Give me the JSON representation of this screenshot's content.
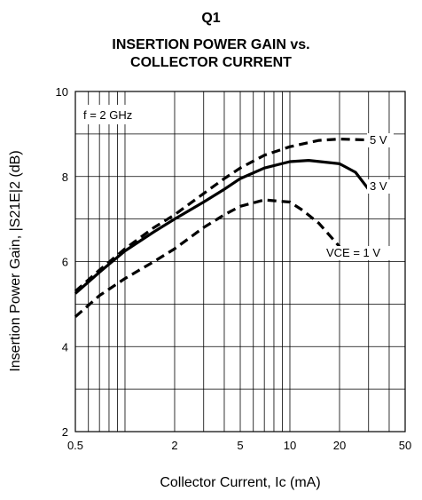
{
  "header": {
    "label": "Q1",
    "title_line1": "INSERTION POWER GAIN vs.",
    "title_line2": "COLLECTOR CURRENT"
  },
  "chart_data": {
    "type": "line",
    "title": "INSERTION POWER GAIN vs. COLLECTOR CURRENT",
    "xlabel": "Collector Current, Ic (mA)",
    "ylabel": "Insertion Power Gain, |S21E|2 (dB)",
    "xscale": "log",
    "xlim": [
      0.5,
      50
    ],
    "ylim": [
      2,
      10
    ],
    "x_tick_labels": [
      "0.5",
      "2",
      "5",
      "10",
      "20",
      "50"
    ],
    "x_tick_values": [
      0.5,
      2,
      5,
      10,
      20,
      50
    ],
    "y_tick_labels": [
      "2",
      "4",
      "6",
      "8",
      "10"
    ],
    "y_tick_values": [
      2,
      4,
      6,
      8,
      10
    ],
    "grid": true,
    "annotation": "f = 2 GHz",
    "series": [
      {
        "name": "5 V",
        "style": "dashed",
        "color": "#000000",
        "x": [
          0.5,
          0.7,
          1,
          1.5,
          2,
          3,
          4,
          5,
          7,
          10,
          15,
          20,
          30
        ],
        "y": [
          5.3,
          5.8,
          6.3,
          6.8,
          7.1,
          7.6,
          7.95,
          8.2,
          8.5,
          8.7,
          8.85,
          8.88,
          8.86
        ]
      },
      {
        "name": "3 V",
        "style": "solid",
        "color": "#000000",
        "x": [
          0.5,
          0.7,
          1,
          1.5,
          2,
          3,
          4,
          5,
          7,
          10,
          13,
          20,
          25,
          30
        ],
        "y": [
          5.25,
          5.75,
          6.25,
          6.7,
          7.0,
          7.4,
          7.7,
          7.95,
          8.2,
          8.35,
          8.38,
          8.3,
          8.1,
          7.7
        ]
      },
      {
        "name": "VCE = 1 V",
        "style": "dashed",
        "color": "#000000",
        "x": [
          0.5,
          0.7,
          1,
          1.5,
          2,
          3,
          4,
          5,
          7,
          10,
          12,
          15,
          20
        ],
        "y": [
          4.7,
          5.2,
          5.6,
          6.0,
          6.3,
          6.8,
          7.1,
          7.3,
          7.45,
          7.4,
          7.2,
          6.9,
          6.35
        ]
      }
    ],
    "series_labels": [
      "5 V",
      "3 V",
      "VCE = 1 V"
    ]
  }
}
